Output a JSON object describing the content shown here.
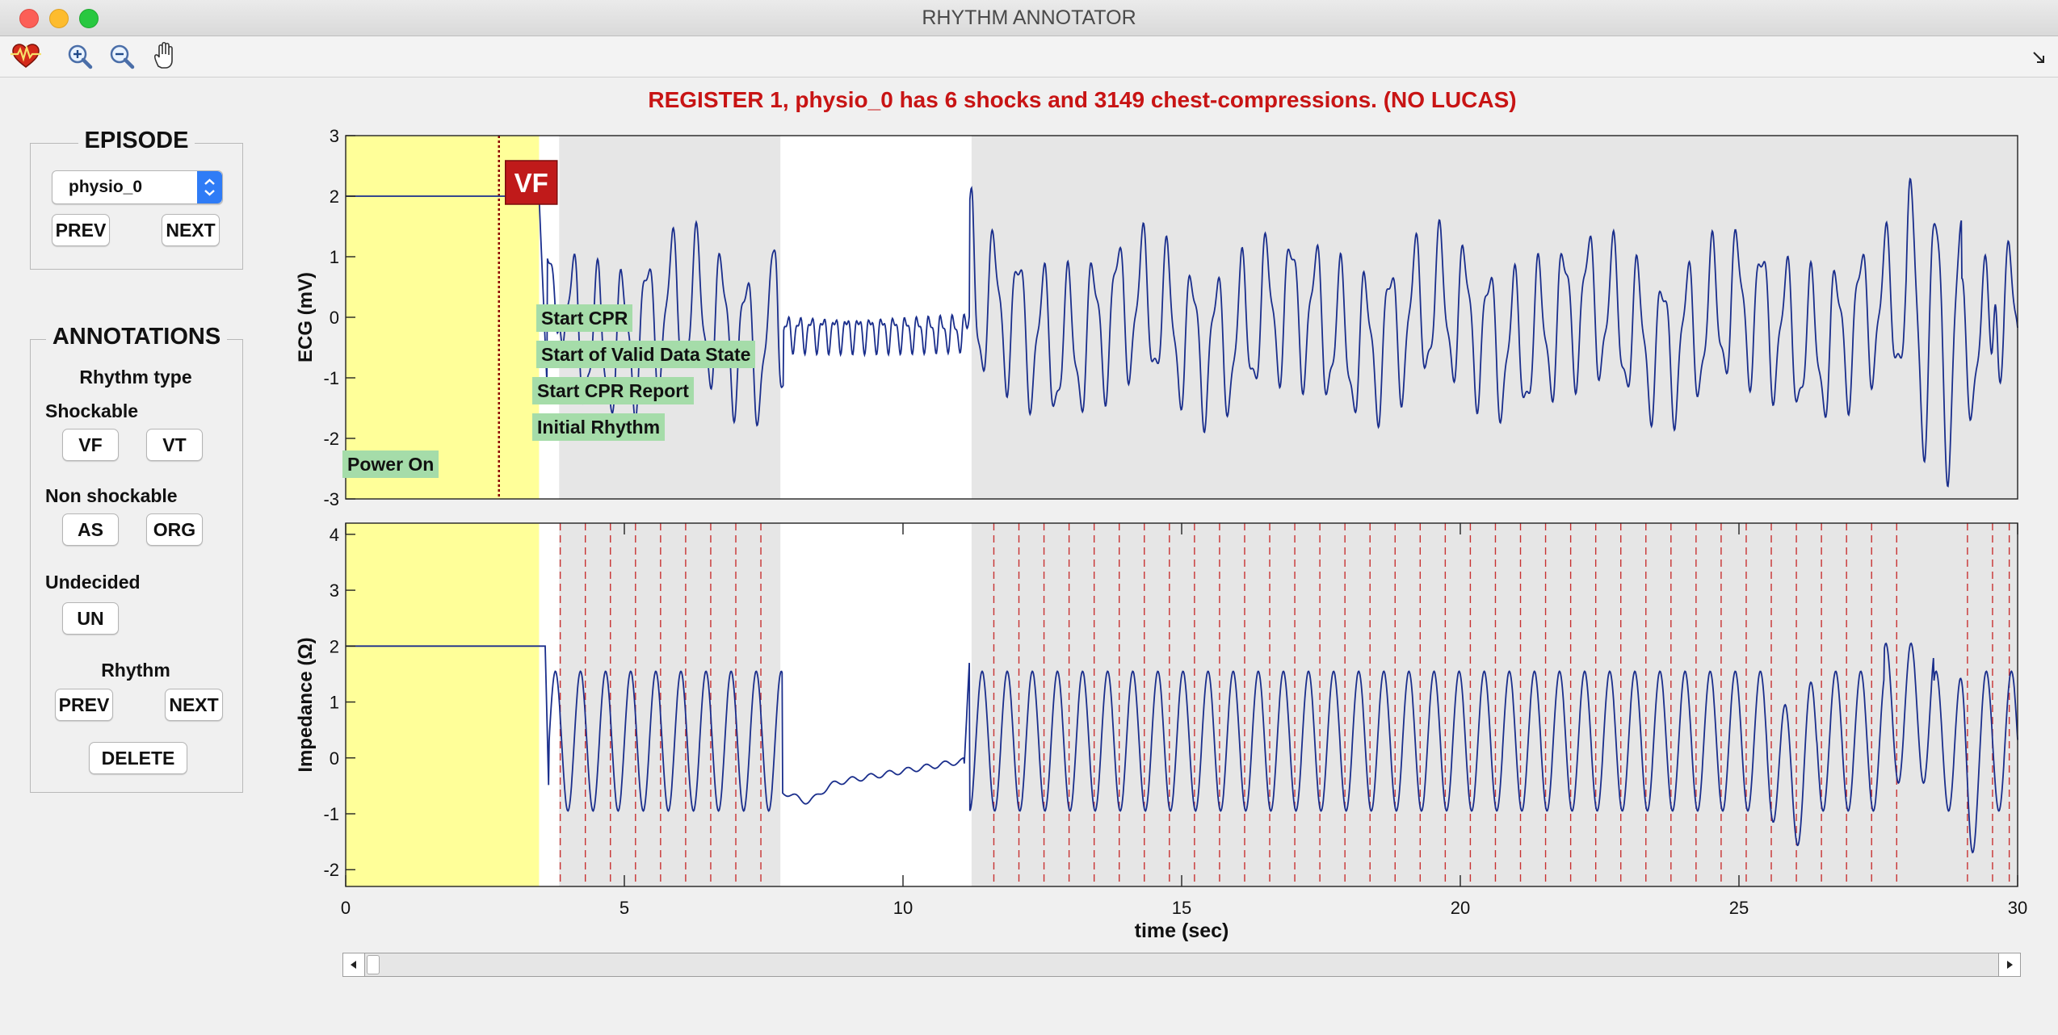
{
  "window": {
    "title": "RHYTHM ANNOTATOR"
  },
  "toolbar": {
    "icons": [
      "heart-ecg-icon",
      "zoom-in-icon",
      "zoom-out-icon",
      "pan-hand-icon"
    ],
    "dock_icon": "undock-arrow-icon"
  },
  "headline": "REGISTER 1, physio_0 has 6 shocks and 3149 chest-compressions. (NO LUCAS)",
  "episode": {
    "title": "EPISODE",
    "selected": "physio_0",
    "prev_label": "PREV",
    "next_label": "NEXT"
  },
  "annotations": {
    "title": "ANNOTATIONS",
    "rhythm_type_label": "Rhythm type",
    "shockable_label": "Shockable",
    "vf_label": "VF",
    "vt_label": "VT",
    "non_shockable_label": "Non shockable",
    "as_label": "AS",
    "org_label": "ORG",
    "undecided_label": "Undecided",
    "un_label": "UN",
    "rhythm_label": "Rhythm",
    "prev_label": "PREV",
    "next_label": "NEXT",
    "delete_label": "DELETE"
  },
  "chart_data": [
    {
      "type": "line",
      "ylabel": "ECG (mV)",
      "xlim": [
        0,
        30
      ],
      "ylim": [
        -3,
        3
      ],
      "yticks": [
        "3",
        "2",
        "1",
        "0",
        "-1",
        "-2",
        "-3"
      ],
      "series_color": "#1a2e8c",
      "shaded_intervals": [
        [
          3.47,
          3.83
        ],
        [
          7.8,
          11.23
        ]
      ],
      "pre_episode_interval": [
        0,
        3.47
      ],
      "rhythm_marker": {
        "label": "VF",
        "x": 2.75
      },
      "event_labels": [
        {
          "text": "Start CPR",
          "x": 3.47
        },
        {
          "text": "Start of Valid Data State",
          "x": 3.47
        },
        {
          "text": "Start CPR Report",
          "x": 3.4
        },
        {
          "text": "Initial Rhythm",
          "x": 3.4
        },
        {
          "text": "Power On",
          "x": 0
        }
      ]
    },
    {
      "type": "line",
      "ylabel": "Impedance (Ω)",
      "xlabel": "time (sec)",
      "xlim": [
        0,
        30
      ],
      "ylim": [
        -2.3,
        4.2
      ],
      "yticks": [
        "4",
        "3",
        "2",
        "1",
        "0",
        "-1",
        "-2"
      ],
      "xticks": [
        "0",
        "5",
        "10",
        "15",
        "20",
        "25",
        "30"
      ],
      "series_color": "#1a2e8c",
      "compression_markers": [
        3.85,
        4.3,
        4.75,
        5.2,
        5.65,
        6.1,
        6.55,
        7.0,
        7.45,
        11.63,
        12.08,
        12.53,
        12.98,
        13.43,
        13.88,
        14.33,
        14.78,
        15.23,
        15.68,
        16.13,
        16.58,
        17.03,
        17.48,
        17.93,
        18.38,
        18.83,
        19.28,
        19.73,
        20.18,
        20.63,
        21.08,
        21.53,
        21.98,
        22.43,
        22.88,
        23.33,
        23.78,
        24.23,
        24.68,
        25.13,
        25.58,
        26.03,
        26.48,
        26.93,
        27.38,
        27.83,
        29.1,
        29.55,
        29.85
      ]
    }
  ]
}
